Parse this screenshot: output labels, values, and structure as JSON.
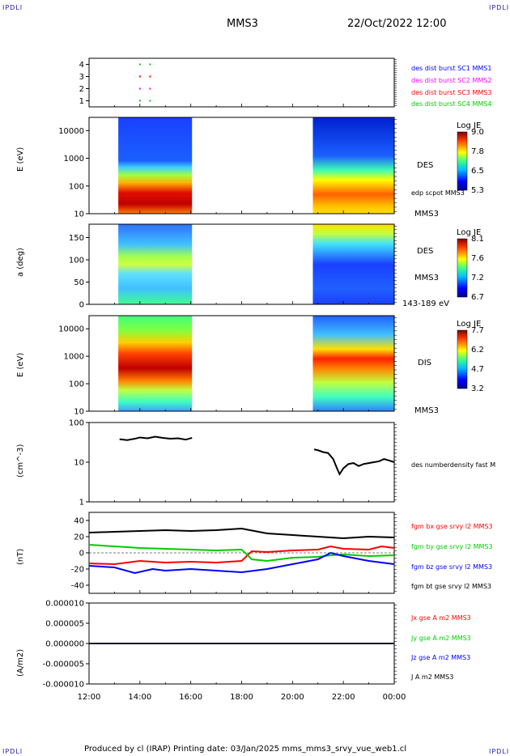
{
  "corners": {
    "tl": "IPDLI",
    "tr": "IPDLI",
    "bl": "IPDLI",
    "br": "IPDLI"
  },
  "header": {
    "spacecraft": "MMS3",
    "datetime": "22/Oct/2022 12:00"
  },
  "footer": {
    "text": "Produced by cl (IRAP)   Printing date: 03/Jan/2025   mms_mms3_srvy_vue_web1.cl"
  },
  "colors": {
    "blue": "#0000ff",
    "magenta": "#ff00ff",
    "red": "#ff0000",
    "green": "#00cc00",
    "black": "#000000",
    "corner": "#1a1aa8"
  },
  "chart_data": [
    {
      "type": "scatter",
      "panel": "burst",
      "ylim": [
        0.5,
        4.5
      ],
      "yticks": [
        "1",
        "2",
        "3",
        "4"
      ],
      "legend": [
        {
          "name": "des dist burst SC1 MMS1",
          "color": "#0000ff"
        },
        {
          "name": "des dist burst SC2 MMS2",
          "color": "#ff00ff"
        },
        {
          "name": "des dist burst SC3 MMS3",
          "color": "#ff0000"
        },
        {
          "name": "des dist burst SC4 MMS4",
          "color": "#00cc00"
        }
      ],
      "points": [
        {
          "t": 14.0,
          "sc": 4
        },
        {
          "t": 14.4,
          "sc": 4
        },
        {
          "t": 14.0,
          "sc": 3
        },
        {
          "t": 14.4,
          "sc": 3
        },
        {
          "t": 14.0,
          "sc": 2
        },
        {
          "t": 14.4,
          "sc": 2
        },
        {
          "t": 14.0,
          "sc": 1
        },
        {
          "t": 14.4,
          "sc": 1
        }
      ]
    },
    {
      "type": "heatmap",
      "panel": "des_energy",
      "ylabel": "E (eV)",
      "ylog": true,
      "ylim": [
        10,
        30000
      ],
      "yticks": [
        "10",
        "100",
        "1000",
        "10000"
      ],
      "label": "DES",
      "sub_label": "MMS3",
      "extra_label": "edp scpot MMS3",
      "colorbar": {
        "title": "Log JE",
        "ticks": [
          "9.0",
          "7.8",
          "6.5",
          "5.3"
        ],
        "min": 5.3,
        "max": 9.0
      },
      "intervals": [
        [
          13.15,
          16.05
        ],
        [
          20.8,
          24.0
        ]
      ]
    },
    {
      "type": "heatmap",
      "panel": "des_pitch",
      "ylabel": "a (deg)",
      "ylim": [
        0,
        180
      ],
      "yticks": [
        "0",
        "50",
        "100",
        "150"
      ],
      "label": "DES",
      "sub_label": "MMS3",
      "energy_label": "143-189 eV",
      "colorbar": {
        "title": "Log JE",
        "ticks": [
          "8.1",
          "7.6",
          "7.2",
          "6.7"
        ],
        "min": 6.7,
        "max": 8.1
      },
      "intervals": [
        [
          13.15,
          16.05
        ],
        [
          20.8,
          24.0
        ]
      ]
    },
    {
      "type": "heatmap",
      "panel": "dis_energy",
      "ylabel": "E (eV)",
      "ylog": true,
      "ylim": [
        10,
        30000
      ],
      "yticks": [
        "10",
        "100",
        "1000",
        "10000"
      ],
      "label": "DIS",
      "sub_label": "MMS3",
      "colorbar": {
        "title": "Log JE",
        "ticks": [
          "7.7",
          "6.2",
          "4.7",
          "3.2"
        ],
        "min": 3.2,
        "max": 7.7
      },
      "intervals": [
        [
          13.15,
          16.05
        ],
        [
          20.8,
          24.0
        ]
      ]
    },
    {
      "type": "line",
      "panel": "density",
      "ylabel": "(cm^-3)",
      "ylog": true,
      "ylim": [
        1,
        100
      ],
      "yticks": [
        "1",
        "10",
        "100"
      ],
      "series": [
        {
          "name": "des numberdensity fast M",
          "color": "#000000",
          "x": [
            13.2,
            13.5,
            13.8,
            14.0,
            14.3,
            14.6,
            14.9,
            15.2,
            15.5,
            15.8,
            16.05
          ],
          "y": [
            38,
            36,
            39,
            42,
            40,
            44,
            41,
            39,
            40,
            37,
            41
          ]
        },
        {
          "name": "",
          "color": "#000000",
          "x": [
            20.85,
            21.0,
            21.2,
            21.4,
            21.6,
            21.75,
            21.85,
            22.0,
            22.2,
            22.4,
            22.6,
            22.8,
            23.0,
            23.2,
            23.4,
            23.6,
            23.8,
            24.0
          ],
          "y": [
            21,
            20,
            18,
            17,
            12,
            7,
            5,
            7,
            9,
            9.5,
            8,
            9,
            9.5,
            10,
            10.5,
            12,
            11,
            10
          ]
        }
      ]
    },
    {
      "type": "line",
      "panel": "b_field",
      "ylabel": "(nT)",
      "ylim": [
        -50,
        50
      ],
      "yticks": [
        "-40",
        "-20",
        "0",
        "20",
        "40"
      ],
      "series": [
        {
          "name": "fgm bx gse srvy l2 MMS3",
          "color": "#ff0000",
          "x": [
            12.0,
            13.0,
            14.0,
            15.0,
            16.0,
            17.0,
            18.0,
            18.4,
            19.0,
            20.0,
            21.0,
            21.5,
            22.0,
            23.0,
            23.5,
            24.0
          ],
          "y": [
            -13,
            -14,
            -10,
            -12,
            -11,
            -12,
            -10,
            2,
            1,
            3,
            4,
            8,
            5,
            4,
            8,
            6
          ]
        },
        {
          "name": "fgm by gse srvy l2 MMS3",
          "color": "#00cc00",
          "x": [
            12.0,
            13.0,
            14.0,
            15.0,
            16.0,
            17.0,
            18.0,
            18.4,
            19.0,
            20.0,
            21.0,
            21.5,
            22.0,
            23.0,
            24.0
          ],
          "y": [
            10,
            8,
            6,
            5,
            4,
            3,
            4,
            -8,
            -10,
            -6,
            -5,
            -3,
            -2,
            -4,
            -3
          ]
        },
        {
          "name": "fgm bz gse srvy l2 MMS3",
          "color": "#0000ff",
          "x": [
            12.0,
            13.0,
            13.8,
            14.5,
            15.0,
            16.0,
            17.0,
            18.0,
            19.0,
            20.0,
            21.0,
            21.5,
            22.0,
            23.0,
            24.0
          ],
          "y": [
            -16,
            -18,
            -25,
            -20,
            -22,
            -20,
            -22,
            -24,
            -20,
            -14,
            -8,
            0,
            -4,
            -10,
            -14
          ]
        },
        {
          "name": "fgm bt gse srvy l2 MMS3",
          "color": "#000000",
          "x": [
            12.0,
            13.0,
            14.0,
            15.0,
            16.0,
            17.0,
            18.0,
            19.0,
            20.0,
            21.0,
            22.0,
            23.0,
            24.0
          ],
          "y": [
            25,
            26,
            27,
            28,
            27,
            28,
            30,
            24,
            22,
            20,
            18,
            20,
            19
          ]
        }
      ]
    },
    {
      "type": "line",
      "panel": "current",
      "ylabel": "(A/m2)",
      "ylim": [
        -1e-05,
        1e-05
      ],
      "yticks": [
        "-0.000010",
        "-0.000005",
        "0.000000",
        "0.000005",
        "0.000010"
      ],
      "series": [
        {
          "name": "Jx gse A m2 MMS3",
          "color": "#ff0000",
          "x": [
            12,
            24
          ],
          "y": [
            0,
            0
          ]
        },
        {
          "name": "Jy gse A m2 MMS3",
          "color": "#00cc00",
          "x": [
            12,
            24
          ],
          "y": [
            0,
            0
          ]
        },
        {
          "name": "Jz gse A m2 MMS3",
          "color": "#0000ff",
          "x": [
            12,
            24
          ],
          "y": [
            0,
            0
          ]
        },
        {
          "name": "J A m2 MMS3",
          "color": "#000000",
          "x": [
            12,
            24
          ],
          "y": [
            0,
            0
          ]
        }
      ]
    }
  ],
  "xaxis": {
    "xlim": [
      12,
      24
    ],
    "ticks": [
      "12:00",
      "14:00",
      "16:00",
      "18:00",
      "20:00",
      "22:00",
      "00:00"
    ]
  }
}
